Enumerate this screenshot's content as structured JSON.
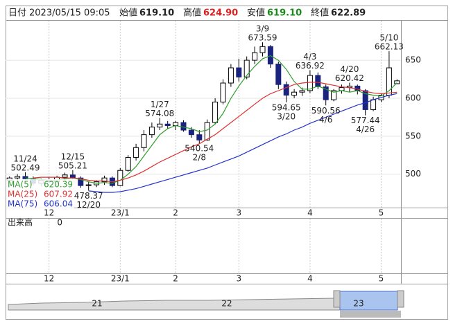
{
  "header": {
    "date_label": "日付",
    "datetime": "2023/05/15 09:05",
    "open_label": "始値",
    "open": "619.10",
    "high_label": "高値",
    "high": "624.90",
    "low_label": "安値",
    "low": "619.10",
    "close_label": "終値",
    "close": "622.89"
  },
  "chart_data": {
    "type": "candlestick",
    "categories": [
      null,
      null,
      null,
      null,
      null,
      "12",
      null,
      null,
      null,
      null,
      null,
      null,
      null,
      null,
      "23/1",
      null,
      null,
      null,
      null,
      null,
      null,
      "2",
      null,
      null,
      null,
      null,
      null,
      null,
      null,
      "3",
      null,
      null,
      null,
      null,
      null,
      null,
      null,
      null,
      "4",
      null,
      null,
      null,
      null,
      null,
      null,
      null,
      null,
      "5",
      null,
      null
    ],
    "candles": [
      [
        492,
        497,
        488,
        495
      ],
      [
        495,
        500,
        490,
        497
      ],
      [
        497,
        502.49,
        493,
        494
      ],
      [
        494,
        497,
        485,
        488
      ],
      [
        488,
        494,
        484,
        492
      ],
      [
        492,
        496,
        488,
        490
      ],
      [
        490,
        498,
        487,
        496
      ],
      [
        496,
        502,
        492,
        499
      ],
      [
        499,
        505.21,
        494,
        495
      ],
      [
        495,
        497,
        482,
        485
      ],
      [
        485,
        490,
        478.37,
        486
      ],
      [
        486,
        492,
        483,
        490
      ],
      [
        490,
        498,
        486,
        495
      ],
      [
        495,
        497,
        483,
        485
      ],
      [
        485,
        508,
        484,
        505
      ],
      [
        505,
        525,
        503,
        522
      ],
      [
        522,
        540,
        518,
        535
      ],
      [
        535,
        558,
        530,
        552
      ],
      [
        552,
        568,
        548,
        562
      ],
      [
        562,
        574.08,
        558,
        566
      ],
      [
        566,
        570,
        560,
        564
      ],
      [
        564,
        570,
        558,
        568
      ],
      [
        568,
        571,
        556,
        558
      ],
      [
        558,
        562,
        548,
        552
      ],
      [
        552,
        558,
        540.54,
        545
      ],
      [
        545,
        572,
        544,
        568
      ],
      [
        568,
        600,
        566,
        595
      ],
      [
        595,
        625,
        592,
        620
      ],
      [
        620,
        645,
        615,
        640
      ],
      [
        640,
        652,
        622,
        628
      ],
      [
        628,
        655,
        625,
        650
      ],
      [
        650,
        668,
        645,
        660
      ],
      [
        660,
        673.59,
        655,
        668
      ],
      [
        668,
        670,
        640,
        645
      ],
      [
        645,
        648,
        612,
        618
      ],
      [
        618,
        622,
        594.65,
        604
      ],
      [
        604,
        612,
        600,
        608
      ],
      [
        608,
        614,
        603,
        610
      ],
      [
        610,
        636.92,
        607,
        630
      ],
      [
        630,
        634,
        612,
        615
      ],
      [
        615,
        618,
        590.56,
        598
      ],
      [
        598,
        612,
        596,
        610
      ],
      [
        610,
        618,
        606,
        614
      ],
      [
        614,
        620.42,
        608,
        616
      ],
      [
        616,
        618,
        605,
        610
      ],
      [
        610,
        612,
        577.44,
        585
      ],
      [
        585,
        602,
        583,
        598
      ],
      [
        598,
        606,
        595,
        604
      ],
      [
        604,
        662.13,
        600,
        640
      ],
      [
        619.1,
        624.9,
        619.1,
        622.89
      ]
    ],
    "bull_color": "#ffffff",
    "bear_color": "#1a237e",
    "ma": [
      {
        "name": "MA(5)",
        "color": "#2e9e2e",
        "values": [
          null,
          null,
          495,
          494,
          493,
          492,
          492,
          494,
          495,
          493,
          490,
          488,
          489,
          488,
          492,
          500,
          510,
          524,
          538,
          552,
          560,
          564,
          562,
          560,
          556,
          558,
          566,
          580,
          600,
          616,
          630,
          642,
          652,
          656,
          650,
          638,
          622,
          612,
          612,
          616,
          612,
          608,
          610,
          608,
          610,
          606,
          604,
          603,
          610,
          620.39
        ]
      },
      {
        "name": "MA(25)",
        "color": "#e03030",
        "values": [
          null,
          null,
          null,
          495,
          496,
          496,
          496,
          495,
          495,
          494,
          492,
          491,
          491,
          490,
          492,
          495,
          499,
          504,
          510,
          516,
          521,
          526,
          531,
          536,
          540,
          546,
          552,
          560,
          568,
          576,
          584,
          592,
          600,
          606,
          610,
          614,
          618,
          620,
          621,
          621,
          619,
          617,
          615,
          614,
          612,
          609,
          607,
          606,
          607,
          607.92
        ]
      },
      {
        "name": "MA(75)",
        "color": "#2233cc",
        "values": [
          null,
          null,
          null,
          null,
          null,
          null,
          null,
          null,
          null,
          null,
          478,
          477,
          476,
          476,
          477,
          479,
          481,
          484,
          487,
          490,
          493,
          496,
          499,
          502,
          505,
          508,
          512,
          516,
          520,
          524,
          529,
          534,
          539,
          544,
          549,
          553,
          558,
          562,
          567,
          571,
          575,
          579,
          583,
          587,
          591,
          594,
          598,
          601,
          604,
          606.04
        ]
      }
    ],
    "annotations": [
      {
        "date": "11/24",
        "value": 502.49
      },
      {
        "date": "12/15",
        "value": 505.21
      },
      {
        "date": "12/20",
        "value": 478.37
      },
      {
        "date": "1/27",
        "value": 574.08
      },
      {
        "date": "2/8",
        "value": 540.54
      },
      {
        "date": "3/9",
        "value": 673.59
      },
      {
        "date": "3/20",
        "value": 594.65
      },
      {
        "date": "4/3",
        "value": 636.92
      },
      {
        "date": "4/6",
        "value": 590.56
      },
      {
        "date": "4/20",
        "value": 620.42
      },
      {
        "date": "4/26",
        "value": 577.44
      },
      {
        "date": "5/10",
        "value": 662.13
      }
    ],
    "ylim": [
      456,
      702
    ],
    "yticks": [
      500,
      550,
      600,
      650
    ],
    "grid": true,
    "volume": {
      "label": "出来高",
      "value": 0
    },
    "navigator": {
      "labels": [
        "21",
        "22",
        "23"
      ]
    }
  }
}
